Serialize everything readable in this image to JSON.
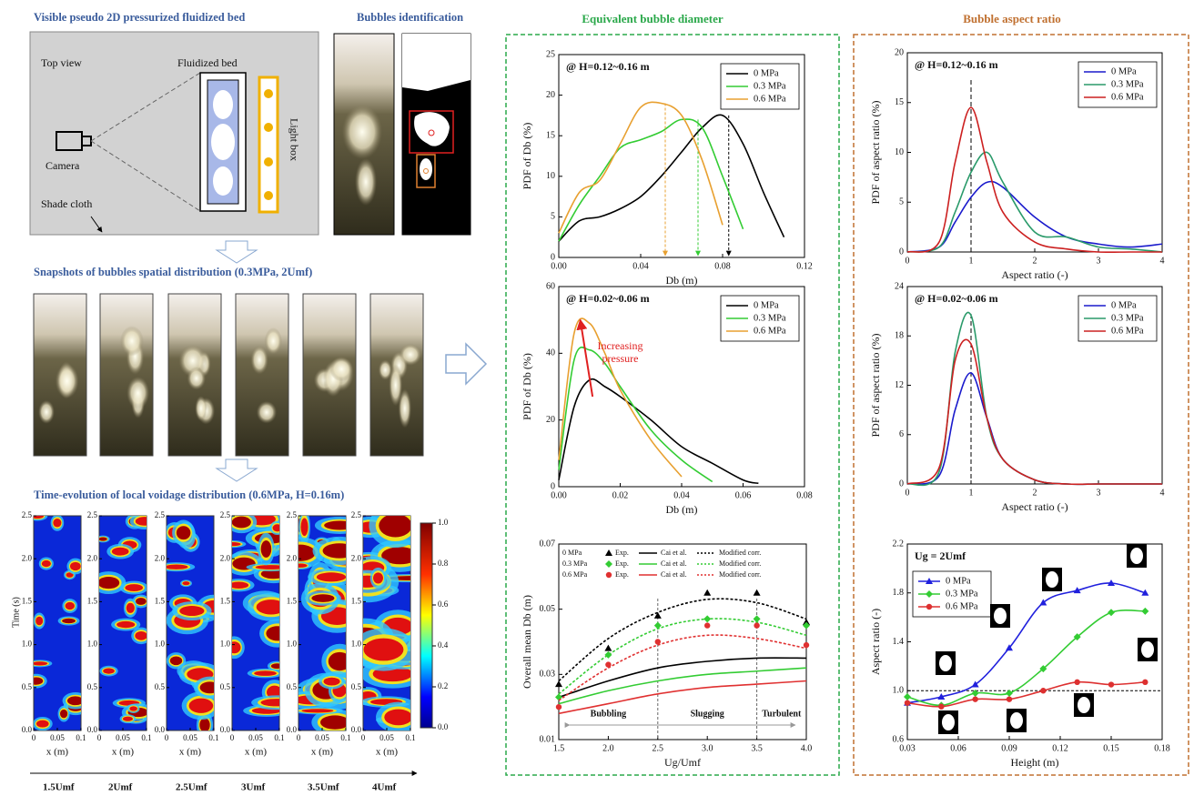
{
  "left": {
    "title": "Visible pseudo 2D pressurized fluidized bed",
    "identification_title": "Bubbles identification",
    "labels": {
      "top_view": "Top view",
      "fluidized_bed": "Fluidized bed",
      "camera": "Camera",
      "light_box": "Light box",
      "shade_cloth": "Shade cloth"
    },
    "snapshots_title": "Snapshots of bubbles spatial distribution (0.3MPa, 2Umf)",
    "voidage_title": "Time-evolution of local voidage distribution (0.6MPa, H=0.16m)",
    "heatmap": {
      "ylabel": "Time (s)",
      "xlabel": "x (m)",
      "ylim": [
        0,
        2.5
      ],
      "yticks": [
        {
          "value": 0,
          "label": "0.0"
        },
        0.5,
        {
          "value": 1,
          "label": "1.0"
        },
        1.5,
        {
          "value": 2,
          "label": "2.0"
        },
        2.5
      ],
      "xlim": [
        0,
        0.1
      ],
      "xticks": [
        0,
        0.05,
        0.1
      ],
      "colorbar_lim": [
        0,
        1
      ],
      "colorbar_ticks": [
        {
          "value": 0,
          "label": "0.0"
        },
        0.2,
        0.4,
        0.6,
        0.8,
        {
          "value": 1,
          "label": "1.0"
        }
      ],
      "conditions": [
        "1.5Umf",
        "2Umf",
        "2.5Umf",
        "3Umf",
        "3.5Umf",
        "4Umf"
      ]
    }
  },
  "panels": {
    "diameter": "Equivalent bubble diameter",
    "aspect": "Bubble aspect ratio"
  },
  "chart_data": [
    {
      "type": "line",
      "annotation": "@ H=0.12~0.16 m",
      "xlabel": "Db (m)",
      "ylabel": "PDF of Db (%)",
      "legend": "upper right",
      "xlim": [
        0,
        0.12
      ],
      "xticks": [
        {
          "value": 0,
          "label": "0.00"
        },
        0.04,
        0.08,
        0.12
      ],
      "ylim": [
        0,
        25
      ],
      "yticks": [
        0,
        5,
        10,
        15,
        20,
        25
      ],
      "x": [
        0,
        0.01,
        0.02,
        0.03,
        0.04,
        0.05,
        0.06,
        0.07,
        0.08,
        0.09,
        0.1,
        0.11
      ],
      "series": [
        {
          "name": "0 MPa",
          "color": "#000000",
          "mean": 0.083,
          "values": [
            2,
            4.5,
            5,
            6,
            7.5,
            10,
            13,
            16,
            17.5,
            14,
            8,
            2.5
          ]
        },
        {
          "name": "0.3 MPa",
          "color": "#33cc33",
          "mean": 0.068,
          "values": [
            2,
            6.5,
            10,
            13.5,
            14.5,
            15.5,
            17,
            16,
            10,
            3.5,
            null,
            null
          ]
        },
        {
          "name": "0.6 MPa",
          "color": "#e8a030",
          "mean": 0.052,
          "values": [
            3,
            8,
            9.5,
            14,
            18.5,
            19,
            17.5,
            12,
            4,
            null,
            null,
            null
          ]
        }
      ]
    },
    {
      "type": "line",
      "annotation": "@ H=0.02~0.06 m",
      "xlabel": "Db (m)",
      "ylabel": "PDF of Db (%)",
      "legend": "upper right",
      "note": [
        "Increasing",
        "pressure"
      ],
      "xlim": [
        0,
        0.08
      ],
      "xticks": [
        {
          "value": 0,
          "label": "0.00"
        },
        0.02,
        0.04,
        0.06,
        0.08
      ],
      "ylim": [
        0,
        60
      ],
      "yticks": [
        0,
        20,
        40,
        60
      ],
      "x": [
        0,
        0.005,
        0.01,
        0.015,
        0.02,
        0.03,
        0.04,
        0.05,
        0.06,
        0.065
      ],
      "series": [
        {
          "name": "0 MPa",
          "color": "#000000",
          "values": [
            2,
            24,
            32,
            30,
            27,
            20,
            12,
            7,
            2,
            1
          ]
        },
        {
          "name": "0.3 MPa",
          "color": "#33cc33",
          "values": [
            5,
            38,
            41,
            37,
            30,
            17,
            8,
            1.5,
            null,
            null
          ]
        },
        {
          "name": "0.6 MPa",
          "color": "#e8a030",
          "values": [
            8,
            46,
            49,
            40,
            29,
            14,
            3,
            null,
            null,
            null
          ]
        }
      ]
    },
    {
      "type": "line",
      "xlabel": "Ug/Umf",
      "ylabel": "Overall mean Db (m)",
      "legend": "upper left",
      "legend_columns": [
        "Exp.",
        "Cai et al.",
        "Modified corr."
      ],
      "regime_bounds": [
        2.5,
        3.5
      ],
      "regimes": [
        "Bubbling",
        "Slugging",
        "Turbulent"
      ],
      "xlim": [
        1.5,
        4
      ],
      "xticks": [
        1.5,
        {
          "value": 2,
          "label": "2.0"
        },
        2.5,
        {
          "value": 3,
          "label": "3.0"
        },
        3.5,
        {
          "value": 4,
          "label": "4.0"
        }
      ],
      "ylim": [
        0.01,
        0.07
      ],
      "yticks": [
        0.01,
        0.03,
        0.05,
        0.07
      ],
      "x": [
        1.5,
        2,
        2.5,
        3,
        3.5,
        4
      ],
      "series": [
        {
          "name": "0 MPa",
          "color": "#000000",
          "marker": "triangle",
          "exp": [
            0.027,
            0.038,
            0.048,
            0.055,
            0.055,
            0.046
          ],
          "cai": [
            0.023,
            0.028,
            0.032,
            0.034,
            0.035,
            0.035
          ],
          "modified": [
            0.028,
            0.041,
            0.049,
            0.053,
            0.052,
            0.047
          ]
        },
        {
          "name": "0.3 MPa",
          "color": "#33cc33",
          "marker": "diamond",
          "exp": [
            0.023,
            0.036,
            0.045,
            0.047,
            0.047,
            0.045
          ],
          "cai": [
            0.021,
            0.025,
            0.028,
            0.03,
            0.031,
            0.032
          ],
          "modified": [
            0.024,
            0.036,
            0.044,
            0.047,
            0.046,
            0.042
          ]
        },
        {
          "name": "0.6 MPa",
          "color": "#e03030",
          "marker": "circle",
          "exp": [
            0.02,
            0.033,
            0.04,
            0.045,
            0.045,
            0.039
          ],
          "cai": [
            0.018,
            0.021,
            0.024,
            0.026,
            0.027,
            0.028
          ],
          "modified": [
            0.022,
            0.032,
            0.039,
            0.042,
            0.041,
            0.038
          ]
        }
      ]
    },
    {
      "type": "line",
      "annotation": "@ H=0.12~0.16 m",
      "xlabel": "Aspect ratio (-)",
      "ylabel": "PDF of aspect ratio (%)",
      "legend": "upper right",
      "ref_x": 1,
      "xlim": [
        0,
        4
      ],
      "xticks": [
        0,
        1,
        2,
        3,
        4
      ],
      "ylim": [
        0,
        20
      ],
      "yticks": [
        0,
        5,
        10,
        15,
        20
      ],
      "x": [
        0,
        0.5,
        0.75,
        1,
        1.25,
        1.5,
        2,
        2.5,
        3,
        3.5,
        4
      ],
      "series": [
        {
          "name": "0 MPa",
          "color": "#1a1acc",
          "values": [
            0,
            0.5,
            3,
            5.5,
            7,
            6.5,
            3.5,
            1.5,
            0.8,
            0.5,
            0.8
          ]
        },
        {
          "name": "0.3 MPa",
          "color": "#2a9a6a",
          "values": [
            0,
            0.5,
            4,
            8,
            10,
            7,
            2,
            1.5,
            0.5,
            0.3,
            0
          ]
        },
        {
          "name": "0.6 MPa",
          "color": "#cc2020",
          "values": [
            0,
            1,
            9,
            14.5,
            9,
            4,
            1,
            0.3,
            0,
            0,
            0
          ]
        }
      ]
    },
    {
      "type": "line",
      "annotation": "@ H=0.02~0.06 m",
      "xlabel": "Aspect ratio (-)",
      "ylabel": "PDF of aspect ratio (%)",
      "legend": "upper right",
      "ref_x": 1,
      "xlim": [
        0,
        4
      ],
      "xticks": [
        0,
        1,
        2,
        3,
        4
      ],
      "ylim": [
        0,
        24
      ],
      "yticks": [
        0,
        6,
        12,
        18,
        24
      ],
      "x": [
        0,
        0.5,
        0.75,
        1,
        1.25,
        1.5,
        2,
        2.5,
        3,
        3.5,
        4
      ],
      "series": [
        {
          "name": "0 MPa",
          "color": "#1a1acc",
          "values": [
            0,
            1,
            9,
            13.5,
            8,
            3,
            0.5,
            0,
            0,
            0,
            0
          ]
        },
        {
          "name": "0.3 MPa",
          "color": "#2a9a6a",
          "values": [
            0,
            1.5,
            16,
            20.5,
            8,
            3,
            0.5,
            0,
            0,
            0,
            0
          ]
        },
        {
          "name": "0.6 MPa",
          "color": "#cc2020",
          "values": [
            0,
            2,
            15,
            17,
            8,
            3,
            0.5,
            0,
            0,
            0,
            0
          ]
        }
      ]
    },
    {
      "type": "line",
      "annotation": "Ug = 2Umf",
      "xlabel": "Height (m)",
      "ylabel": "Aspect ratio (-)",
      "legend": "upper left",
      "ref_y": 1,
      "xlim": [
        0.03,
        0.18
      ],
      "xticks": [
        0.03,
        0.06,
        0.09,
        0.12,
        0.15,
        0.18
      ],
      "ylim": [
        0.6,
        2.2
      ],
      "yticks": [
        0.6,
        {
          "value": 1,
          "label": "1.0"
        },
        1.4,
        1.8,
        2.2
      ],
      "x": [
        0.03,
        0.05,
        0.07,
        0.09,
        0.11,
        0.13,
        0.15,
        0.17
      ],
      "series": [
        {
          "name": "0 MPa",
          "color": "#2020dd",
          "marker": "triangle",
          "values": [
            0.9,
            0.95,
            1.05,
            1.35,
            1.72,
            1.82,
            1.88,
            1.8
          ]
        },
        {
          "name": "0.3 MPa",
          "color": "#33cc33",
          "marker": "diamond",
          "values": [
            0.95,
            0.88,
            0.98,
            0.98,
            1.18,
            1.44,
            1.64,
            1.65
          ]
        },
        {
          "name": "0.6 MPa",
          "color": "#dd3030",
          "marker": "circle",
          "values": [
            0.9,
            0.87,
            0.93,
            0.93,
            1,
            1.07,
            1.05,
            1.07
          ]
        }
      ]
    }
  ]
}
